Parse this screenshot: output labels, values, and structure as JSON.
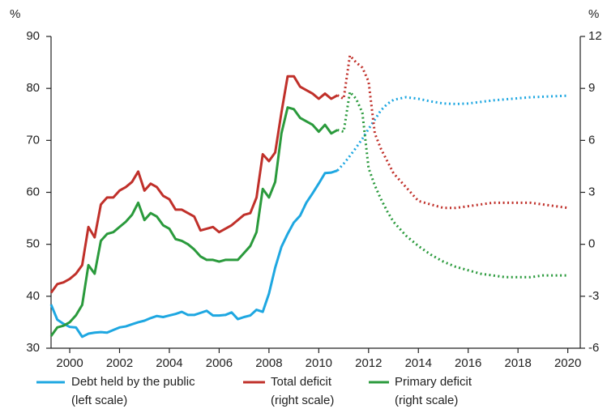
{
  "chart_data": {
    "type": "line",
    "y_unit": "%",
    "y2_unit": "%",
    "x": [
      1999.25,
      1999.5,
      1999.75,
      2000,
      2000.25,
      2000.5,
      2000.75,
      2001,
      2001.25,
      2001.5,
      2001.75,
      2002,
      2002.25,
      2002.5,
      2002.75,
      2003,
      2003.25,
      2003.5,
      2003.75,
      2004,
      2004.25,
      2004.5,
      2004.75,
      2005,
      2005.25,
      2005.5,
      2005.75,
      2006,
      2006.25,
      2006.5,
      2006.75,
      2007,
      2007.25,
      2007.5,
      2007.75,
      2008,
      2008.25,
      2008.5,
      2008.75,
      2009,
      2009.25,
      2009.5,
      2009.75,
      2010,
      2010.25,
      2010.5,
      2010.75,
      2011,
      2011.25,
      2011.5,
      2011.75,
      2012,
      2012.25,
      2012.5,
      2012.75,
      2013,
      2013.5,
      2014,
      2014.5,
      2015,
      2015.5,
      2016,
      2016.5,
      2017,
      2017.5,
      2018,
      2018.5,
      2019,
      2019.5,
      2020
    ],
    "xlim": [
      1999.25,
      2020.5
    ],
    "xticks": [
      2000,
      2002,
      2004,
      2006,
      2008,
      2010,
      2012,
      2014,
      2016,
      2018,
      2020
    ],
    "ylim": [
      30,
      90
    ],
    "yticks": [
      30,
      40,
      50,
      60,
      70,
      80,
      90
    ],
    "y2lim": [
      -6,
      12
    ],
    "y2ticks": [
      -6,
      -3,
      0,
      3,
      6,
      9,
      12
    ],
    "series": [
      {
        "name": "Debt held by the public",
        "scale_label": "(left scale)",
        "color": "#1ea7e1",
        "axis": "y",
        "values": [
          38.4,
          35.5,
          34.7,
          34.1,
          34.0,
          32.2,
          32.8,
          33.0,
          33.1,
          33.0,
          33.5,
          34.0,
          34.2,
          34.6,
          35.0,
          35.3,
          35.8,
          36.2,
          36.0,
          36.3,
          36.6,
          37.0,
          36.4,
          36.4,
          36.8,
          37.2,
          36.3,
          36.3,
          36.4,
          36.9,
          35.6,
          36.0,
          36.3,
          37.4,
          37.0,
          40.5,
          45.5,
          49.5,
          52.0,
          54.2,
          55.5,
          58.0,
          59.8,
          61.7,
          63.7,
          63.8,
          64.2,
          null,
          null,
          null,
          null,
          null,
          null,
          null,
          null,
          null,
          null,
          null,
          null,
          null,
          null,
          null,
          null,
          null,
          null,
          null,
          null,
          null,
          null,
          null
        ],
        "projection": [
          null,
          null,
          null,
          null,
          null,
          null,
          null,
          null,
          null,
          null,
          null,
          null,
          null,
          null,
          null,
          null,
          null,
          null,
          null,
          null,
          null,
          null,
          null,
          null,
          null,
          null,
          null,
          null,
          null,
          null,
          null,
          null,
          null,
          null,
          null,
          null,
          null,
          null,
          null,
          null,
          null,
          null,
          null,
          null,
          null,
          null,
          64.2,
          65.5,
          67.0,
          68.6,
          70.3,
          72.2,
          74.0,
          75.8,
          77.0,
          77.8,
          78.3,
          78.0,
          77.5,
          77.1,
          77.0,
          77.1,
          77.4,
          77.7,
          77.9,
          78.1,
          78.3,
          78.4,
          78.5,
          78.6
        ]
      },
      {
        "name": "Total deficit",
        "scale_label": "(right scale)",
        "color": "#c0302a",
        "axis": "y2",
        "values": [
          -2.8,
          -2.3,
          -2.2,
          -2.0,
          -1.7,
          -1.2,
          1.0,
          0.4,
          2.3,
          2.7,
          2.7,
          3.1,
          3.3,
          3.6,
          4.2,
          3.1,
          3.5,
          3.3,
          2.8,
          2.6,
          2.0,
          2.0,
          1.8,
          1.6,
          0.8,
          0.9,
          1.0,
          0.7,
          0.9,
          1.1,
          1.4,
          1.7,
          1.8,
          2.7,
          5.2,
          4.8,
          5.3,
          7.6,
          9.7,
          9.7,
          9.1,
          8.9,
          8.7,
          8.4,
          8.7,
          8.4,
          8.6,
          null,
          null,
          null,
          null,
          null,
          null,
          null,
          null,
          null,
          null,
          null,
          null,
          null,
          null,
          null,
          null,
          null,
          null,
          null,
          null,
          null,
          null,
          null
        ],
        "projection": [
          null,
          null,
          null,
          null,
          null,
          null,
          null,
          null,
          null,
          null,
          null,
          null,
          null,
          null,
          null,
          null,
          null,
          null,
          null,
          null,
          null,
          null,
          null,
          null,
          null,
          null,
          null,
          null,
          null,
          null,
          null,
          null,
          null,
          null,
          null,
          null,
          null,
          null,
          null,
          null,
          null,
          null,
          null,
          null,
          null,
          null,
          8.6,
          8.4,
          10.9,
          10.5,
          10.2,
          9.4,
          6.4,
          5.5,
          4.8,
          4.1,
          3.3,
          2.5,
          2.3,
          2.1,
          2.1,
          2.2,
          2.3,
          2.4,
          2.4,
          2.4,
          2.4,
          2.3,
          2.2,
          2.1
        ]
      },
      {
        "name": "Primary deficit",
        "scale_label": "(right scale)",
        "color": "#2a9a3c",
        "axis": "y2",
        "values": [
          -5.3,
          -4.8,
          -4.7,
          -4.5,
          -4.1,
          -3.5,
          -1.2,
          -1.7,
          0.2,
          0.6,
          0.7,
          1.0,
          1.3,
          1.7,
          2.4,
          1.4,
          1.8,
          1.6,
          1.1,
          0.9,
          0.3,
          0.2,
          0.0,
          -0.3,
          -0.7,
          -0.9,
          -0.9,
          -1.0,
          -0.9,
          -0.9,
          -0.9,
          -0.5,
          -0.1,
          0.7,
          3.2,
          2.7,
          3.6,
          6.4,
          7.9,
          7.8,
          7.3,
          7.1,
          6.9,
          6.5,
          6.9,
          6.4,
          6.6,
          null,
          null,
          null,
          null,
          null,
          null,
          null,
          null,
          null,
          null,
          null,
          null,
          null,
          null,
          null,
          null,
          null,
          null,
          null,
          null,
          null,
          null,
          null
        ],
        "projection": [
          null,
          null,
          null,
          null,
          null,
          null,
          null,
          null,
          null,
          null,
          null,
          null,
          null,
          null,
          null,
          null,
          null,
          null,
          null,
          null,
          null,
          null,
          null,
          null,
          null,
          null,
          null,
          null,
          null,
          null,
          null,
          null,
          null,
          null,
          null,
          null,
          null,
          null,
          null,
          null,
          null,
          null,
          null,
          null,
          null,
          null,
          6.6,
          6.5,
          8.8,
          8.4,
          7.6,
          4.4,
          3.4,
          2.6,
          1.9,
          1.3,
          0.5,
          -0.1,
          -0.6,
          -1.0,
          -1.3,
          -1.5,
          -1.7,
          -1.8,
          -1.9,
          -1.9,
          -1.9,
          -1.8,
          -1.8,
          -1.8
        ]
      }
    ]
  }
}
